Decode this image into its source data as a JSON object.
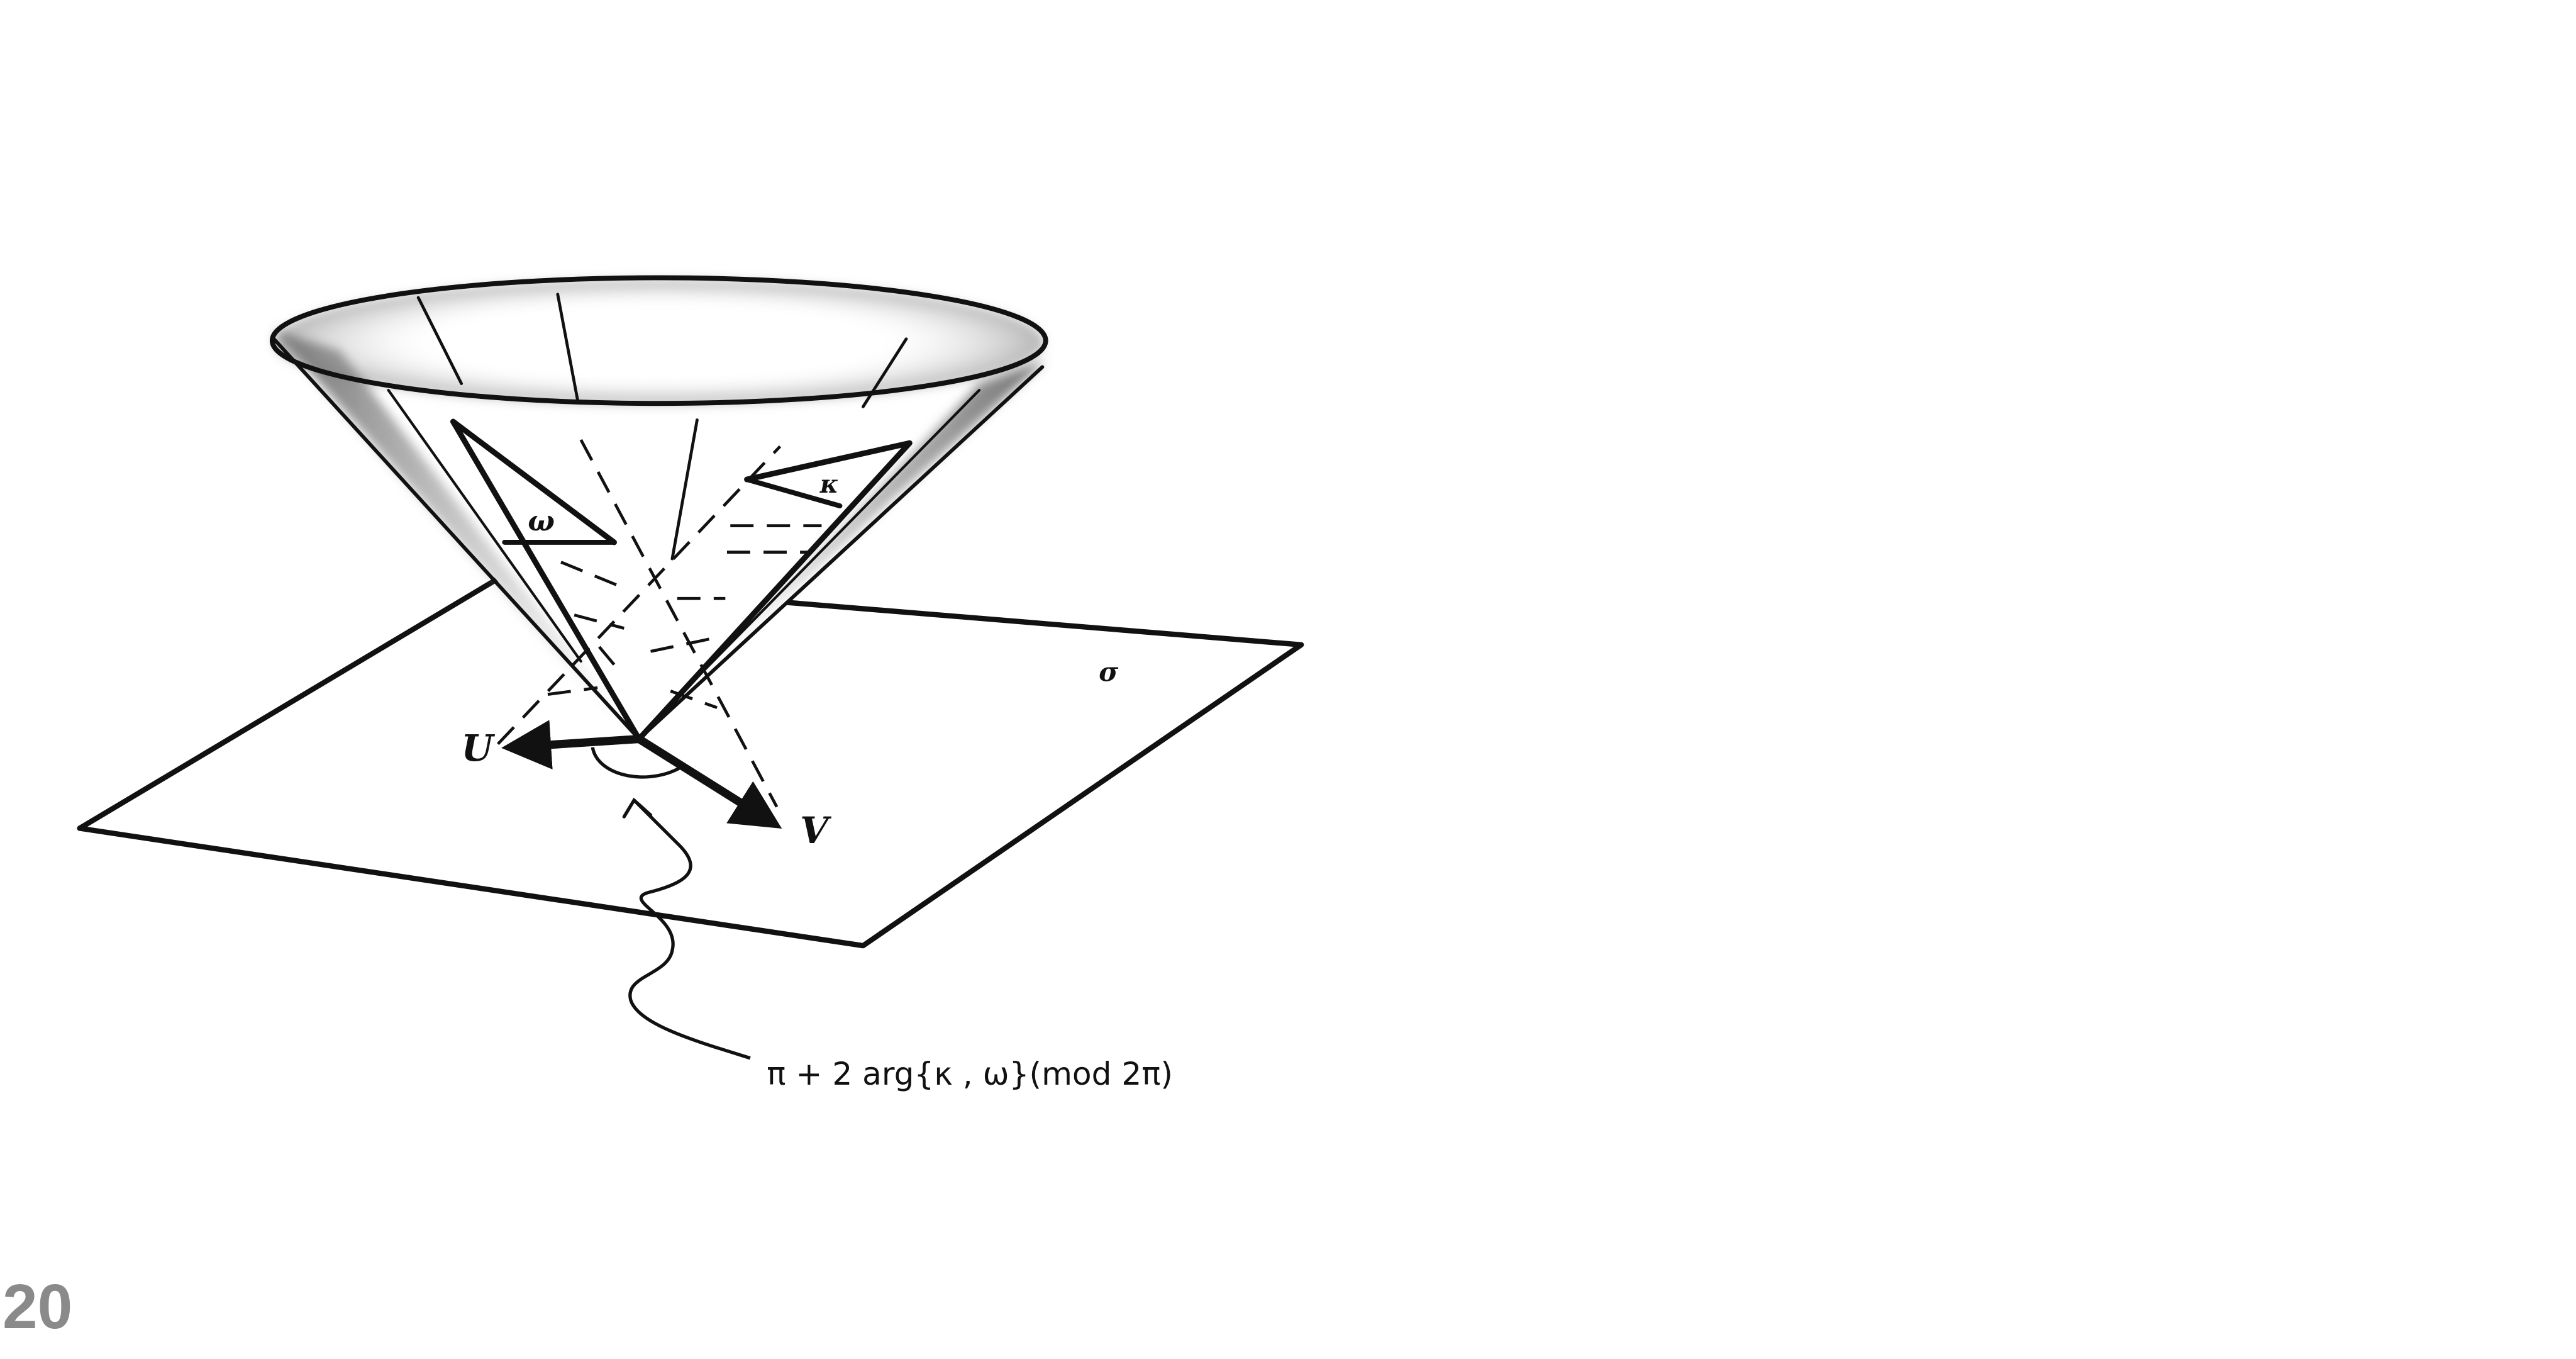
{
  "figure": {
    "labels": {
      "plane": "σ",
      "vector_u": "U",
      "vector_v": "V",
      "flag_omega": "ω",
      "flag_kappa": "κ"
    },
    "annotation": "π + 2 arg{κ , ω}(mod 2π)"
  },
  "page_number": "20"
}
